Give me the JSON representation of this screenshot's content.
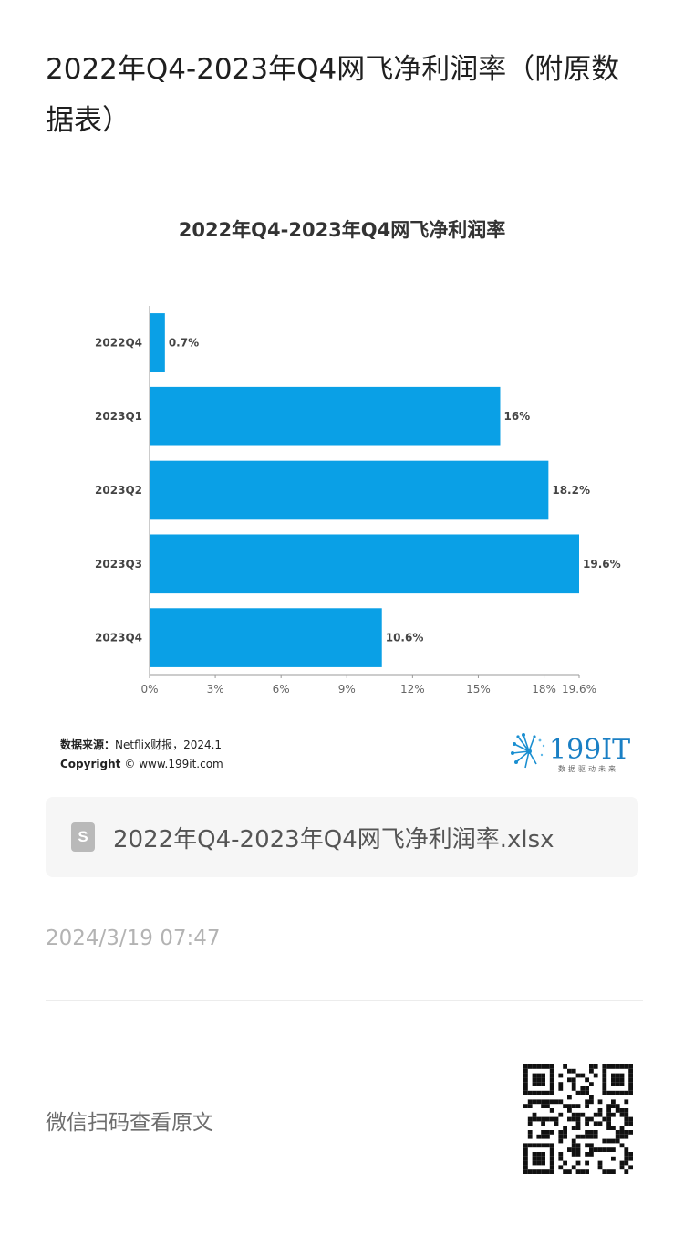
{
  "page": {
    "title": "2022年Q4-2023年Q4网飞净利润率（附原数据表）"
  },
  "chart_data": {
    "type": "bar",
    "orientation": "horizontal",
    "title": "2022年Q4-2023年Q4网飞净利润率",
    "categories": [
      "2022Q4",
      "2023Q1",
      "2023Q2",
      "2023Q3",
      "2023Q4"
    ],
    "values": [
      0.7,
      16,
      18.2,
      19.6,
      10.6
    ],
    "data_labels": [
      "0.7%",
      "16%",
      "18.2%",
      "19.6%",
      "10.6%"
    ],
    "xticks": [
      0,
      3,
      6,
      9,
      12,
      15,
      18,
      19.6
    ],
    "xtick_labels": [
      "0%",
      "3%",
      "6%",
      "9%",
      "12%",
      "15%",
      "18%",
      "19.6%"
    ],
    "xlim": [
      0,
      19.6
    ],
    "xlabel": "",
    "ylabel": "",
    "grid": false,
    "bar_color": "#0aa0e6"
  },
  "source": {
    "label": "数据来源：",
    "text": "Netflix财报，2024.1",
    "copyright_label": "Copyright",
    "copyright_text": "© www.199it.com"
  },
  "logo": {
    "name": "199IT",
    "tagline": "数据驱动未来",
    "icon": "dandelion-logo-icon"
  },
  "attachment": {
    "icon": "spreadsheet-file-icon",
    "filename": "2022年Q4-2023年Q4网飞净利润率.xlsx"
  },
  "meta": {
    "timestamp": "2024/3/19 07:47",
    "scan_label": "微信扫码查看原文",
    "qr_icon": "qr-code-icon"
  }
}
